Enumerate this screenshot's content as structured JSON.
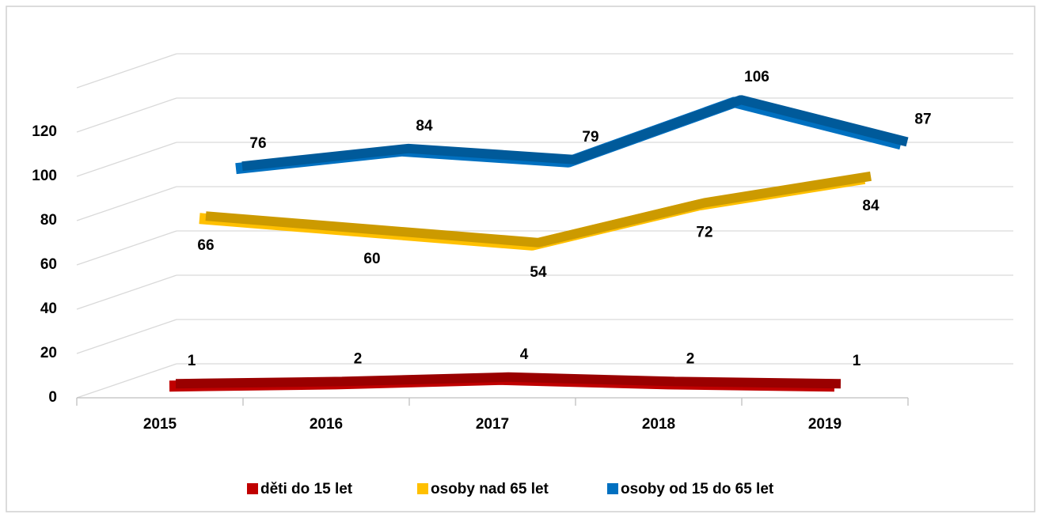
{
  "chart_data": {
    "type": "line",
    "categories": [
      "2015",
      "2016",
      "2017",
      "2018",
      "2019"
    ],
    "series": [
      {
        "name": "děti do 15 let",
        "color": "#c00000",
        "values": [
          1,
          2,
          4,
          2,
          1
        ]
      },
      {
        "name": "osoby nad 65 let",
        "color": "#ffc000",
        "values": [
          66,
          60,
          54,
          72,
          84
        ]
      },
      {
        "name": "osoby od 15 do 65 let",
        "color": "#0070c0",
        "values": [
          76,
          84,
          79,
          106,
          87
        ]
      }
    ],
    "ylim": [
      0,
      140
    ],
    "yticks": [
      0,
      20,
      40,
      60,
      80,
      100,
      120
    ],
    "grid": true,
    "legend": "bottom"
  }
}
